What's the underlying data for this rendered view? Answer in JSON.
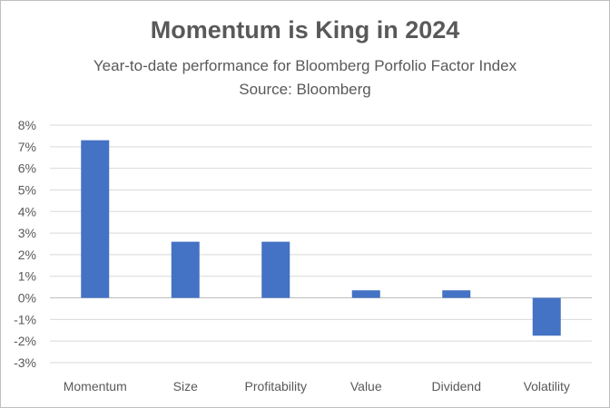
{
  "chart_data": {
    "type": "bar",
    "title": "Momentum is King in 2024",
    "subtitle": [
      "Year-to-date performance for Bloomberg Porfolio Factor Index",
      "Source: Bloomberg"
    ],
    "xlabel": "",
    "ylabel": "",
    "categories": [
      "Momentum",
      "Size",
      "Profitability",
      "Value",
      "Dividend",
      "Volatility"
    ],
    "values": [
      7.3,
      2.6,
      2.6,
      0.35,
      0.35,
      -1.75
    ],
    "ylim": [
      -3,
      8
    ],
    "y_ticks": [
      8,
      7,
      6,
      5,
      4,
      3,
      2,
      1,
      0,
      -1,
      -2,
      -3
    ],
    "y_tick_labels": [
      "8%",
      "7%",
      "6%",
      "5%",
      "4%",
      "3%",
      "2%",
      "1%",
      "0%",
      "-1%",
      "-2%",
      "-3%"
    ],
    "bar_color": "#4472c4",
    "grid": true,
    "legend": "none"
  }
}
